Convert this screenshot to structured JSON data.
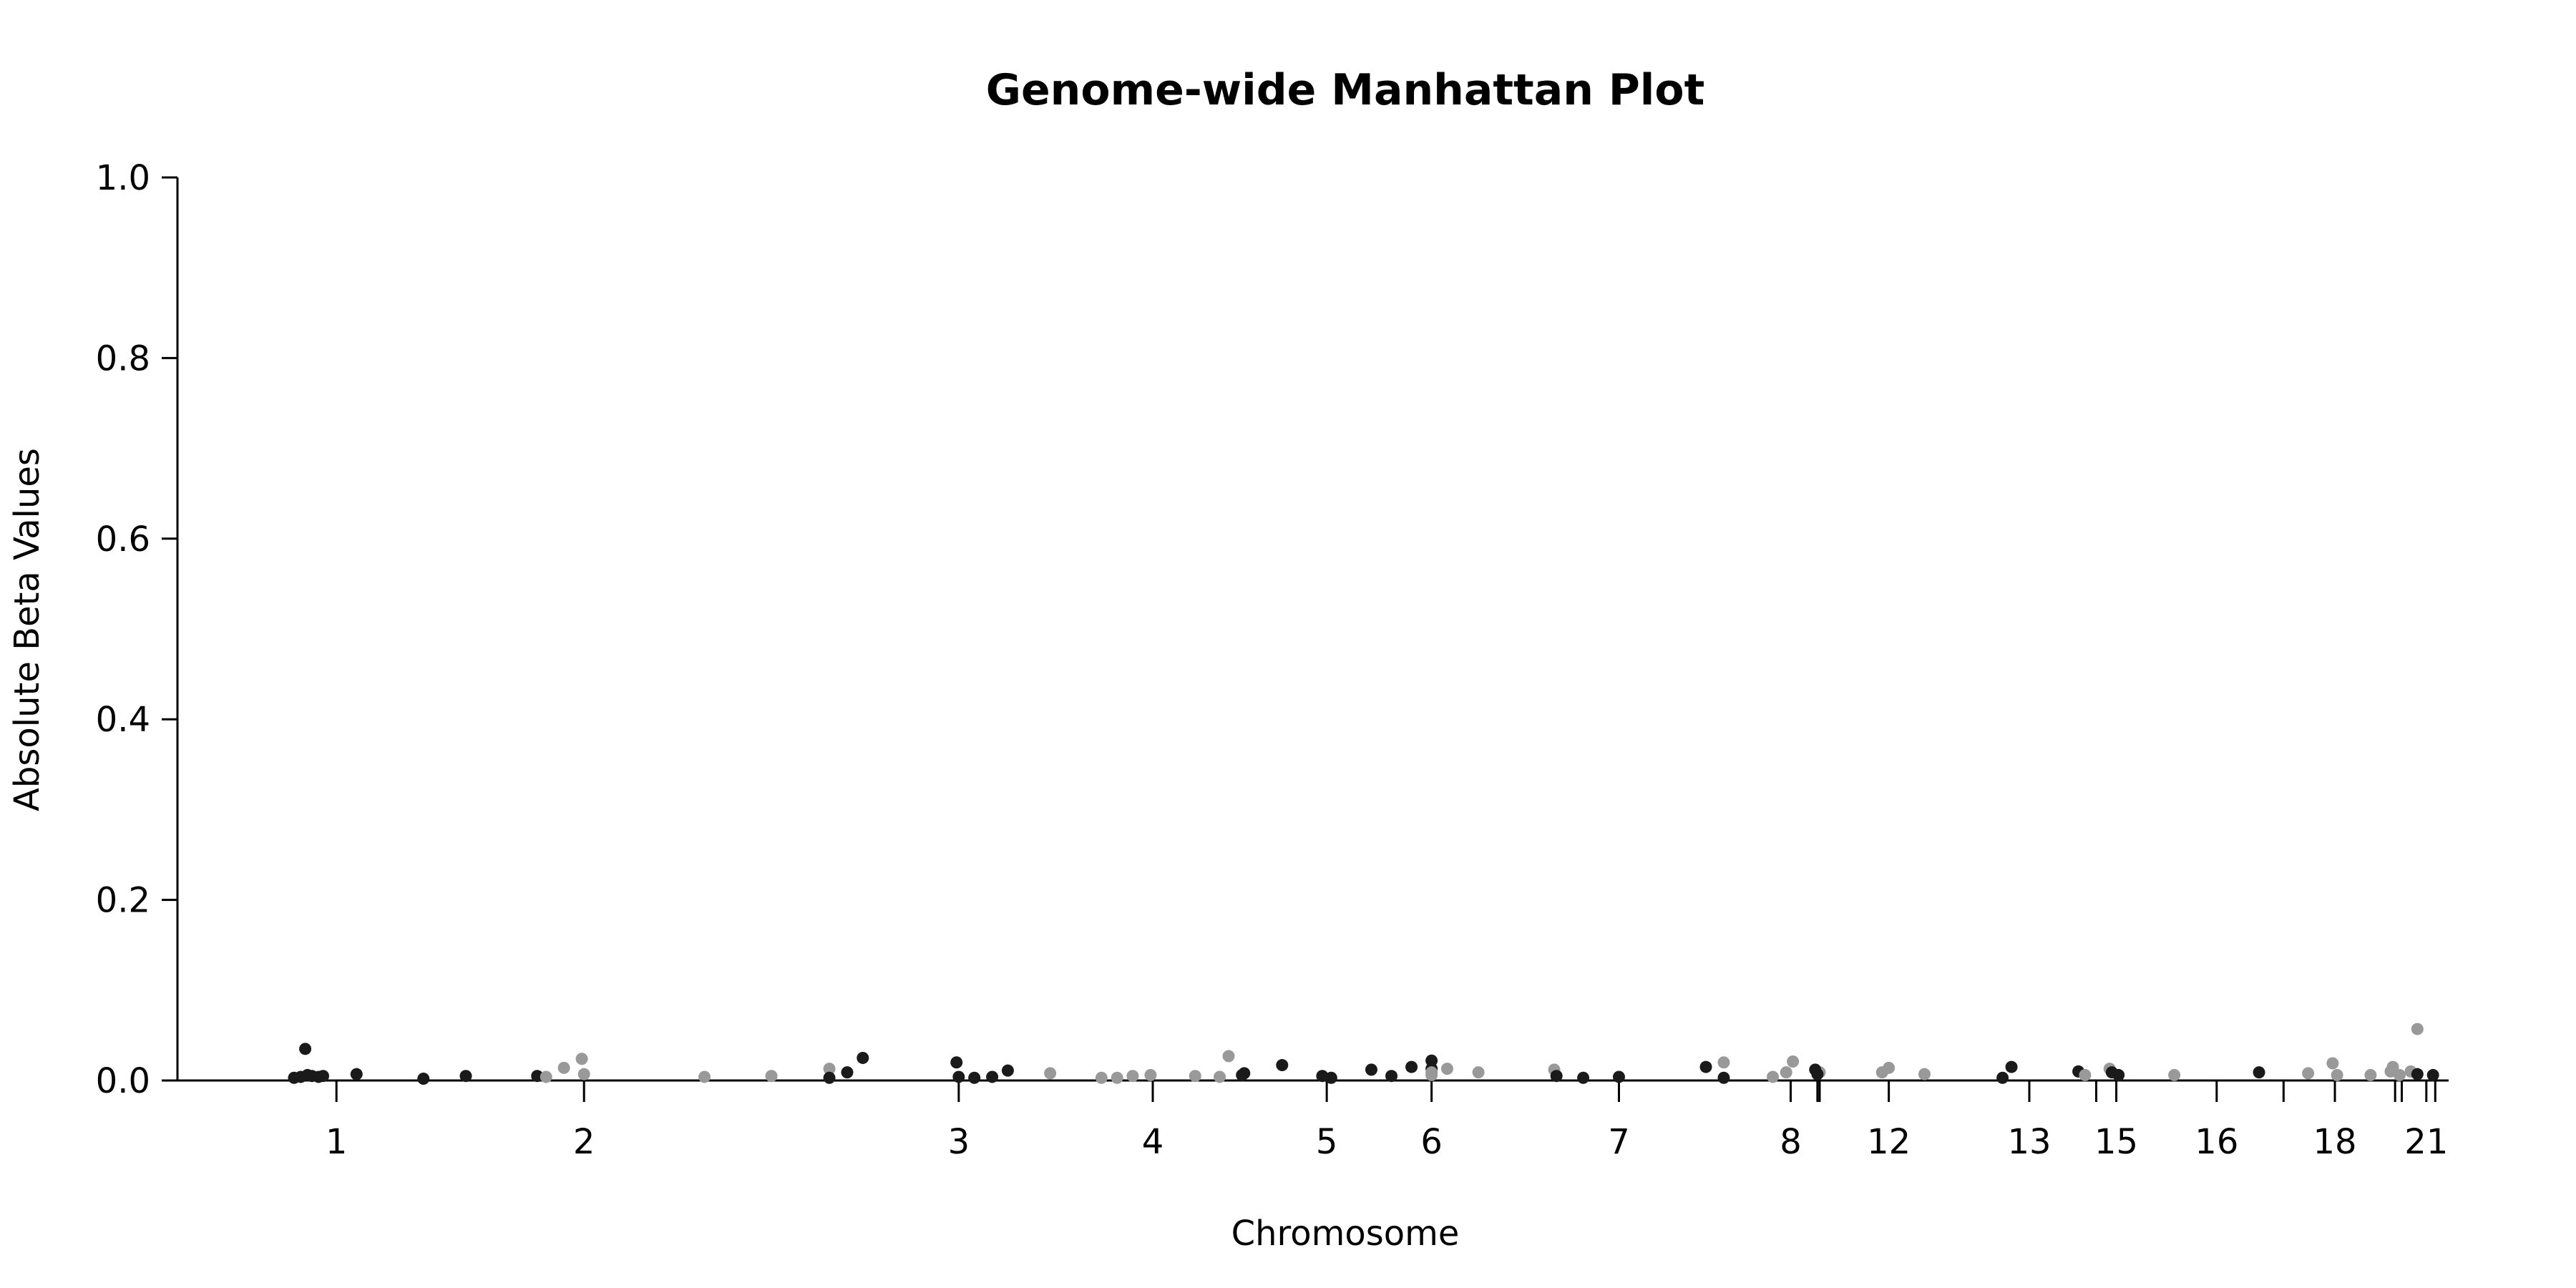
{
  "chart_data": {
    "type": "scatter",
    "title": "Genome-wide Manhattan Plot",
    "xlabel": "Chromosome",
    "ylabel": "Absolute Beta Values",
    "ylim": [
      0,
      1
    ],
    "yticks": [
      "0.0",
      "0.2",
      "0.4",
      "0.6",
      "0.8",
      "1.0"
    ],
    "grid": false,
    "legend": "none",
    "colors": {
      "odd": "#1a1a1a",
      "even": "#999999"
    },
    "chromosomes": [
      {
        "label": "1",
        "ticks": [
          0.053
        ]
      },
      {
        "label": "2",
        "ticks": [
          0.164
        ]
      },
      {
        "label": "3",
        "ticks": [
          0.332
        ]
      },
      {
        "label": "4",
        "ticks": [
          0.419
        ]
      },
      {
        "label": "5",
        "ticks": [
          0.497
        ]
      },
      {
        "label": "6",
        "ticks": [
          0.544
        ]
      },
      {
        "label": "7",
        "ticks": [
          0.628
        ]
      },
      {
        "label": "8",
        "ticks": [
          0.705,
          0.717,
          0.718
        ]
      },
      {
        "label": "12",
        "ticks": [
          0.749
        ]
      },
      {
        "label": "13",
        "ticks": [
          0.812,
          0.842
        ]
      },
      {
        "label": "15",
        "ticks": [
          0.851
        ]
      },
      {
        "label": "16",
        "ticks": [
          0.896,
          0.926
        ]
      },
      {
        "label": "18",
        "ticks": [
          0.949,
          0.976,
          0.979
        ]
      },
      {
        "label": "21",
        "ticks": [
          0.99,
          0.994
        ]
      }
    ],
    "series": [
      {
        "group": "odd",
        "points": [
          [
            0.034,
            0.003
          ],
          [
            0.037,
            0.004
          ],
          [
            0.039,
            0.035
          ],
          [
            0.04,
            0.006
          ],
          [
            0.042,
            0.005
          ],
          [
            0.045,
            0.004
          ],
          [
            0.047,
            0.005
          ],
          [
            0.062,
            0.007
          ],
          [
            0.092,
            0.002
          ],
          [
            0.111,
            0.005
          ],
          [
            0.143,
            0.005
          ]
        ]
      },
      {
        "group": "even",
        "points": [
          [
            0.147,
            0.004
          ],
          [
            0.155,
            0.014
          ],
          [
            0.163,
            0.024
          ],
          [
            0.164,
            0.007
          ],
          [
            0.218,
            0.004
          ],
          [
            0.248,
            0.005
          ]
        ]
      },
      {
        "group": "even",
        "points": [
          [
            0.274,
            0.013
          ]
        ]
      },
      {
        "group": "odd",
        "points": [
          [
            0.274,
            0.003
          ],
          [
            0.282,
            0.009
          ],
          [
            0.289,
            0.025
          ],
          [
            0.331,
            0.02
          ],
          [
            0.332,
            0.004
          ],
          [
            0.339,
            0.003
          ],
          [
            0.347,
            0.004
          ],
          [
            0.354,
            0.011
          ]
        ]
      },
      {
        "group": "even",
        "points": [
          [
            0.373,
            0.008
          ],
          [
            0.396,
            0.003
          ],
          [
            0.403,
            0.003
          ],
          [
            0.41,
            0.005
          ],
          [
            0.418,
            0.006
          ],
          [
            0.438,
            0.005
          ],
          [
            0.449,
            0.004
          ],
          [
            0.453,
            0.027
          ]
        ]
      },
      {
        "group": "odd",
        "points": [
          [
            0.459,
            0.006
          ],
          [
            0.46,
            0.008
          ],
          [
            0.477,
            0.017
          ],
          [
            0.495,
            0.005
          ],
          [
            0.499,
            0.003
          ],
          [
            0.517,
            0.012
          ],
          [
            0.526,
            0.005
          ],
          [
            0.535,
            0.015
          ],
          [
            0.544,
            0.022
          ],
          [
            0.544,
            0.013
          ]
        ]
      },
      {
        "group": "even",
        "points": [
          [
            0.544,
            0.006
          ],
          [
            0.544,
            0.009
          ],
          [
            0.551,
            0.013
          ],
          [
            0.565,
            0.009
          ],
          [
            0.599,
            0.012
          ]
        ]
      },
      {
        "group": "odd",
        "points": [
          [
            0.6,
            0.005
          ],
          [
            0.612,
            0.003
          ],
          [
            0.628,
            0.004
          ],
          [
            0.667,
            0.015
          ],
          [
            0.675,
            0.003
          ]
        ]
      },
      {
        "group": "even",
        "points": [
          [
            0.675,
            0.02
          ],
          [
            0.697,
            0.004
          ],
          [
            0.703,
            0.009
          ],
          [
            0.706,
            0.021
          ],
          [
            0.718,
            0.009
          ]
        ]
      },
      {
        "group": "odd",
        "points": [
          [
            0.716,
            0.012
          ],
          [
            0.717,
            0.007
          ]
        ]
      },
      {
        "group": "even",
        "points": [
          [
            0.746,
            0.009
          ],
          [
            0.749,
            0.014
          ],
          [
            0.765,
            0.007
          ]
        ]
      },
      {
        "group": "odd",
        "points": [
          [
            0.8,
            0.003
          ],
          [
            0.804,
            0.015
          ],
          [
            0.834,
            0.01
          ]
        ]
      },
      {
        "group": "even",
        "points": [
          [
            0.837,
            0.006
          ],
          [
            0.848,
            0.013
          ]
        ]
      },
      {
        "group": "odd",
        "points": [
          [
            0.849,
            0.009
          ],
          [
            0.852,
            0.006
          ]
        ]
      },
      {
        "group": "even",
        "points": [
          [
            0.877,
            0.006
          ]
        ]
      },
      {
        "group": "odd",
        "points": [
          [
            0.915,
            0.009
          ]
        ]
      },
      {
        "group": "even",
        "points": [
          [
            0.937,
            0.008
          ],
          [
            0.948,
            0.019
          ],
          [
            0.95,
            0.006
          ],
          [
            0.965,
            0.006
          ],
          [
            0.974,
            0.01
          ],
          [
            0.975,
            0.015
          ],
          [
            0.978,
            0.006
          ],
          [
            0.983,
            0.01
          ],
          [
            0.986,
            0.057
          ]
        ]
      },
      {
        "group": "odd",
        "points": [
          [
            0.986,
            0.007
          ],
          [
            0.993,
            0.006
          ]
        ]
      }
    ]
  }
}
